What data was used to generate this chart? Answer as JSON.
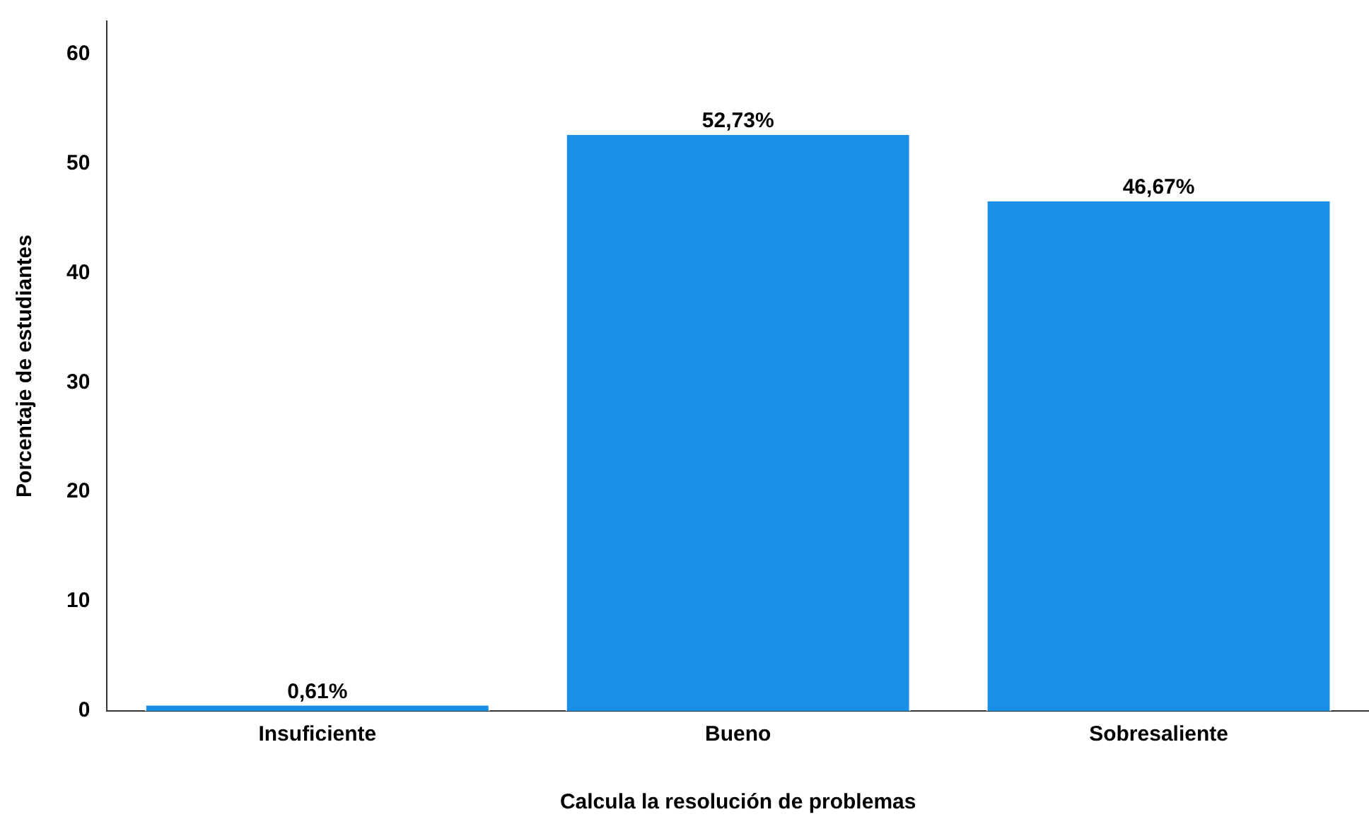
{
  "chart_data": {
    "type": "bar",
    "xlabel": "Calcula la resolución de problemas",
    "ylabel": "Porcentaje de estudiantes",
    "categories": [
      "Insuficiente",
      "Bueno",
      "Sobresaliente"
    ],
    "values": [
      0.61,
      52.73,
      46.67
    ],
    "value_labels": [
      "0,61%",
      "52,73%",
      "46,67%"
    ],
    "color": "#1a8fe6",
    "ylim": [
      0,
      63
    ],
    "yticks": [
      0,
      10,
      20,
      30,
      40,
      50,
      60
    ],
    "grid": false,
    "legend": false
  }
}
